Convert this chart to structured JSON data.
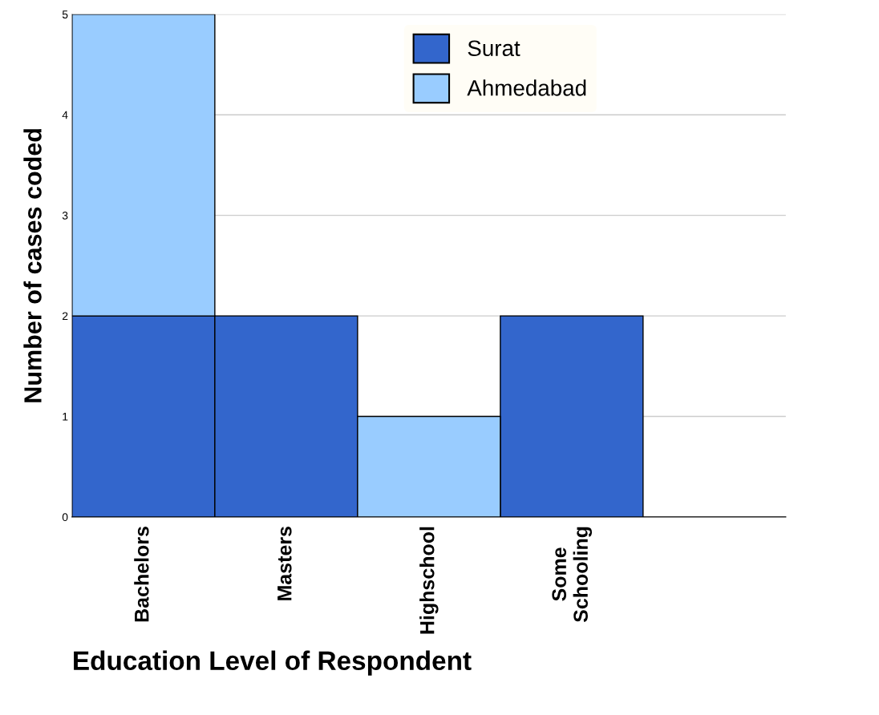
{
  "chart_data": {
    "type": "bar",
    "stacked": true,
    "categories": [
      "Bachelors",
      "Masters",
      "Highschool",
      "Some\nSchooling",
      null
    ],
    "series": [
      {
        "name": "Surat",
        "color": "#3366cc",
        "values": [
          2,
          2,
          0,
          2,
          null
        ]
      },
      {
        "name": "Ahmedabad",
        "color": "#99ccff",
        "values": [
          3,
          0,
          1,
          0,
          null
        ]
      }
    ],
    "xlabel": "Education Level of Respondent",
    "ylabel": "Number of cases coded",
    "ylim": [
      0,
      5
    ],
    "yticks": [
      0,
      1,
      2,
      3,
      4,
      5
    ],
    "grid": "y",
    "legend": "top"
  }
}
